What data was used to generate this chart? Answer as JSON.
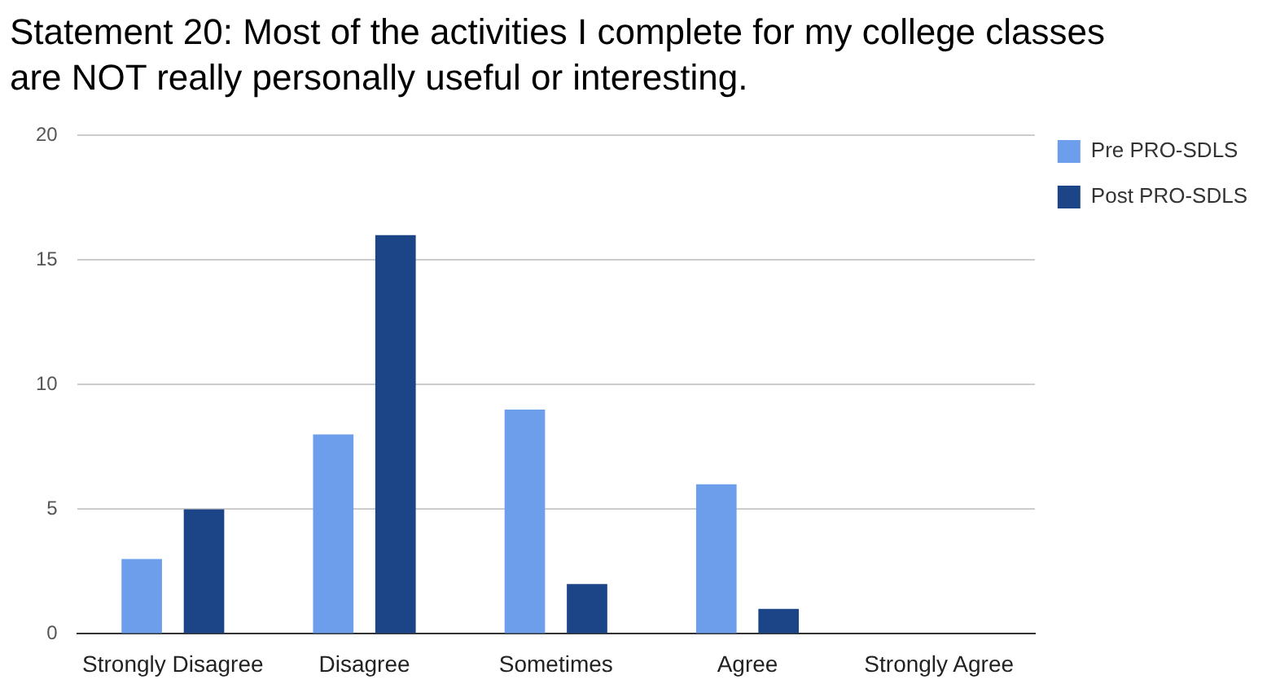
{
  "chart_data": {
    "type": "bar",
    "title": "Statement 20: Most of the activities I complete for my college classes are NOT really personally useful or interesting.",
    "categories": [
      "Strongly Disagree",
      "Disagree",
      "Sometimes",
      "Agree",
      "Strongly Agree"
    ],
    "series": [
      {
        "name": "Pre PRO-SDLS",
        "color": "#6d9eeb",
        "values": [
          3,
          8,
          9,
          6,
          0
        ]
      },
      {
        "name": "Post PRO-SDLS",
        "color": "#1c4587",
        "values": [
          5,
          16,
          2,
          1,
          0
        ]
      }
    ],
    "ylim": [
      0,
      20
    ],
    "yticks": [
      0,
      5,
      10,
      15,
      20
    ],
    "grid": "y",
    "legend": "top right"
  }
}
